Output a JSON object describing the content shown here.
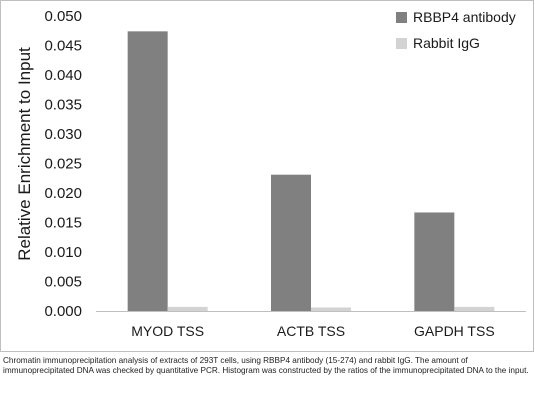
{
  "chart_data": {
    "type": "bar",
    "categories": [
      "MYOD TSS",
      "ACTB TSS",
      "GAPDH TSS"
    ],
    "series": [
      {
        "name": "RBBP4 antibody",
        "values": [
          0.0474,
          0.0231,
          0.0167
        ],
        "color": "#808080"
      },
      {
        "name": "Rabbit IgG",
        "values": [
          0.0007,
          0.0006,
          0.0007
        ],
        "color": "#d3d3d3"
      }
    ],
    "title": "",
    "xlabel": "",
    "ylabel": "Relative Enrichment to Input",
    "ylim": [
      0,
      0.05
    ],
    "yticks": [
      "0.000",
      "0.005",
      "0.010",
      "0.015",
      "0.020",
      "0.025",
      "0.030",
      "0.035",
      "0.040",
      "0.045",
      "0.050"
    ],
    "grid": false,
    "legend_position": "top-right"
  },
  "caption": "Chromatin immunoprecipitation analysis of extracts of 293T cells, using RBBP4 antibody (15-274) and rabbit IgG. The amount of immunoprecipitated DNA was checked by quantitative PCR. Histogram was constructed by the ratios of the immunoprecipitated DNA to the input."
}
